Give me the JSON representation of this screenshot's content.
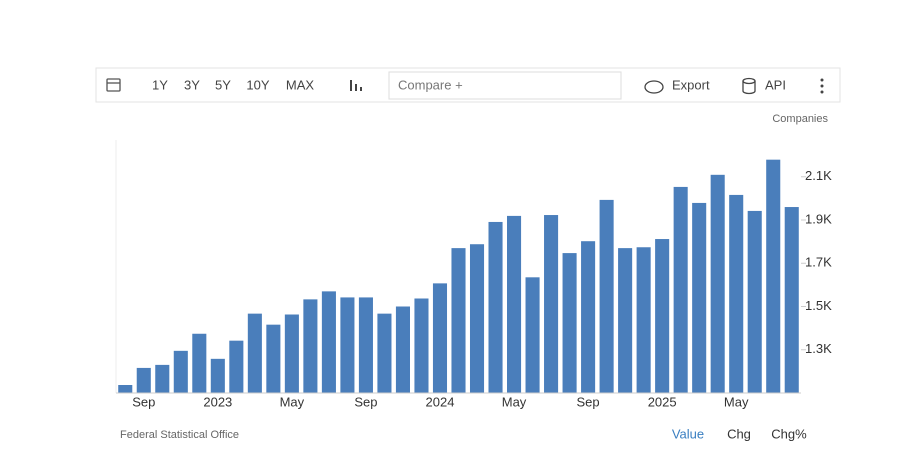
{
  "ui": {
    "ranges": [
      "1Y",
      "3Y",
      "5Y",
      "10Y",
      "MAX"
    ],
    "compare": "Compare +",
    "export": "Export",
    "api": "API",
    "units": "Companies",
    "source": "Federal Statistical Office",
    "tabs": [
      "Value",
      "Chg",
      "Chg%"
    ]
  },
  "chart_data": {
    "type": "bar",
    "color": "#4a7ebb",
    "categories": [
      null,
      "Sep",
      null,
      null,
      null,
      "2023",
      null,
      null,
      null,
      "May",
      null,
      null,
      null,
      "Sep",
      null,
      null,
      null,
      "2024",
      null,
      null,
      null,
      "May",
      null,
      null,
      null,
      "Sep",
      null,
      null,
      null,
      "2025",
      null,
      null,
      null,
      "May",
      null,
      null,
      null
    ],
    "values": [
      1137,
      1216,
      1230,
      1295,
      1374,
      1258,
      1342,
      1467,
      1416,
      1463,
      1533,
      1570,
      1542,
      1542,
      1467,
      1500,
      1537,
      1607,
      1770,
      1788,
      1891,
      1919,
      1635,
      1923,
      1747,
      1802,
      1993,
      1770,
      1774,
      1812,
      2053,
      1979,
      2109,
      2016,
      1942,
      2179,
      1960
    ],
    "ylim": [
      1100,
      2270
    ],
    "yticks": [
      {
        "value": 1300,
        "label": "1.3K"
      },
      {
        "value": 1500,
        "label": "1.5K"
      },
      {
        "value": 1700,
        "label": "1.7K"
      },
      {
        "value": 1900,
        "label": "1.9K"
      },
      {
        "value": 2100,
        "label": "2.1K"
      }
    ],
    "grid": false
  }
}
